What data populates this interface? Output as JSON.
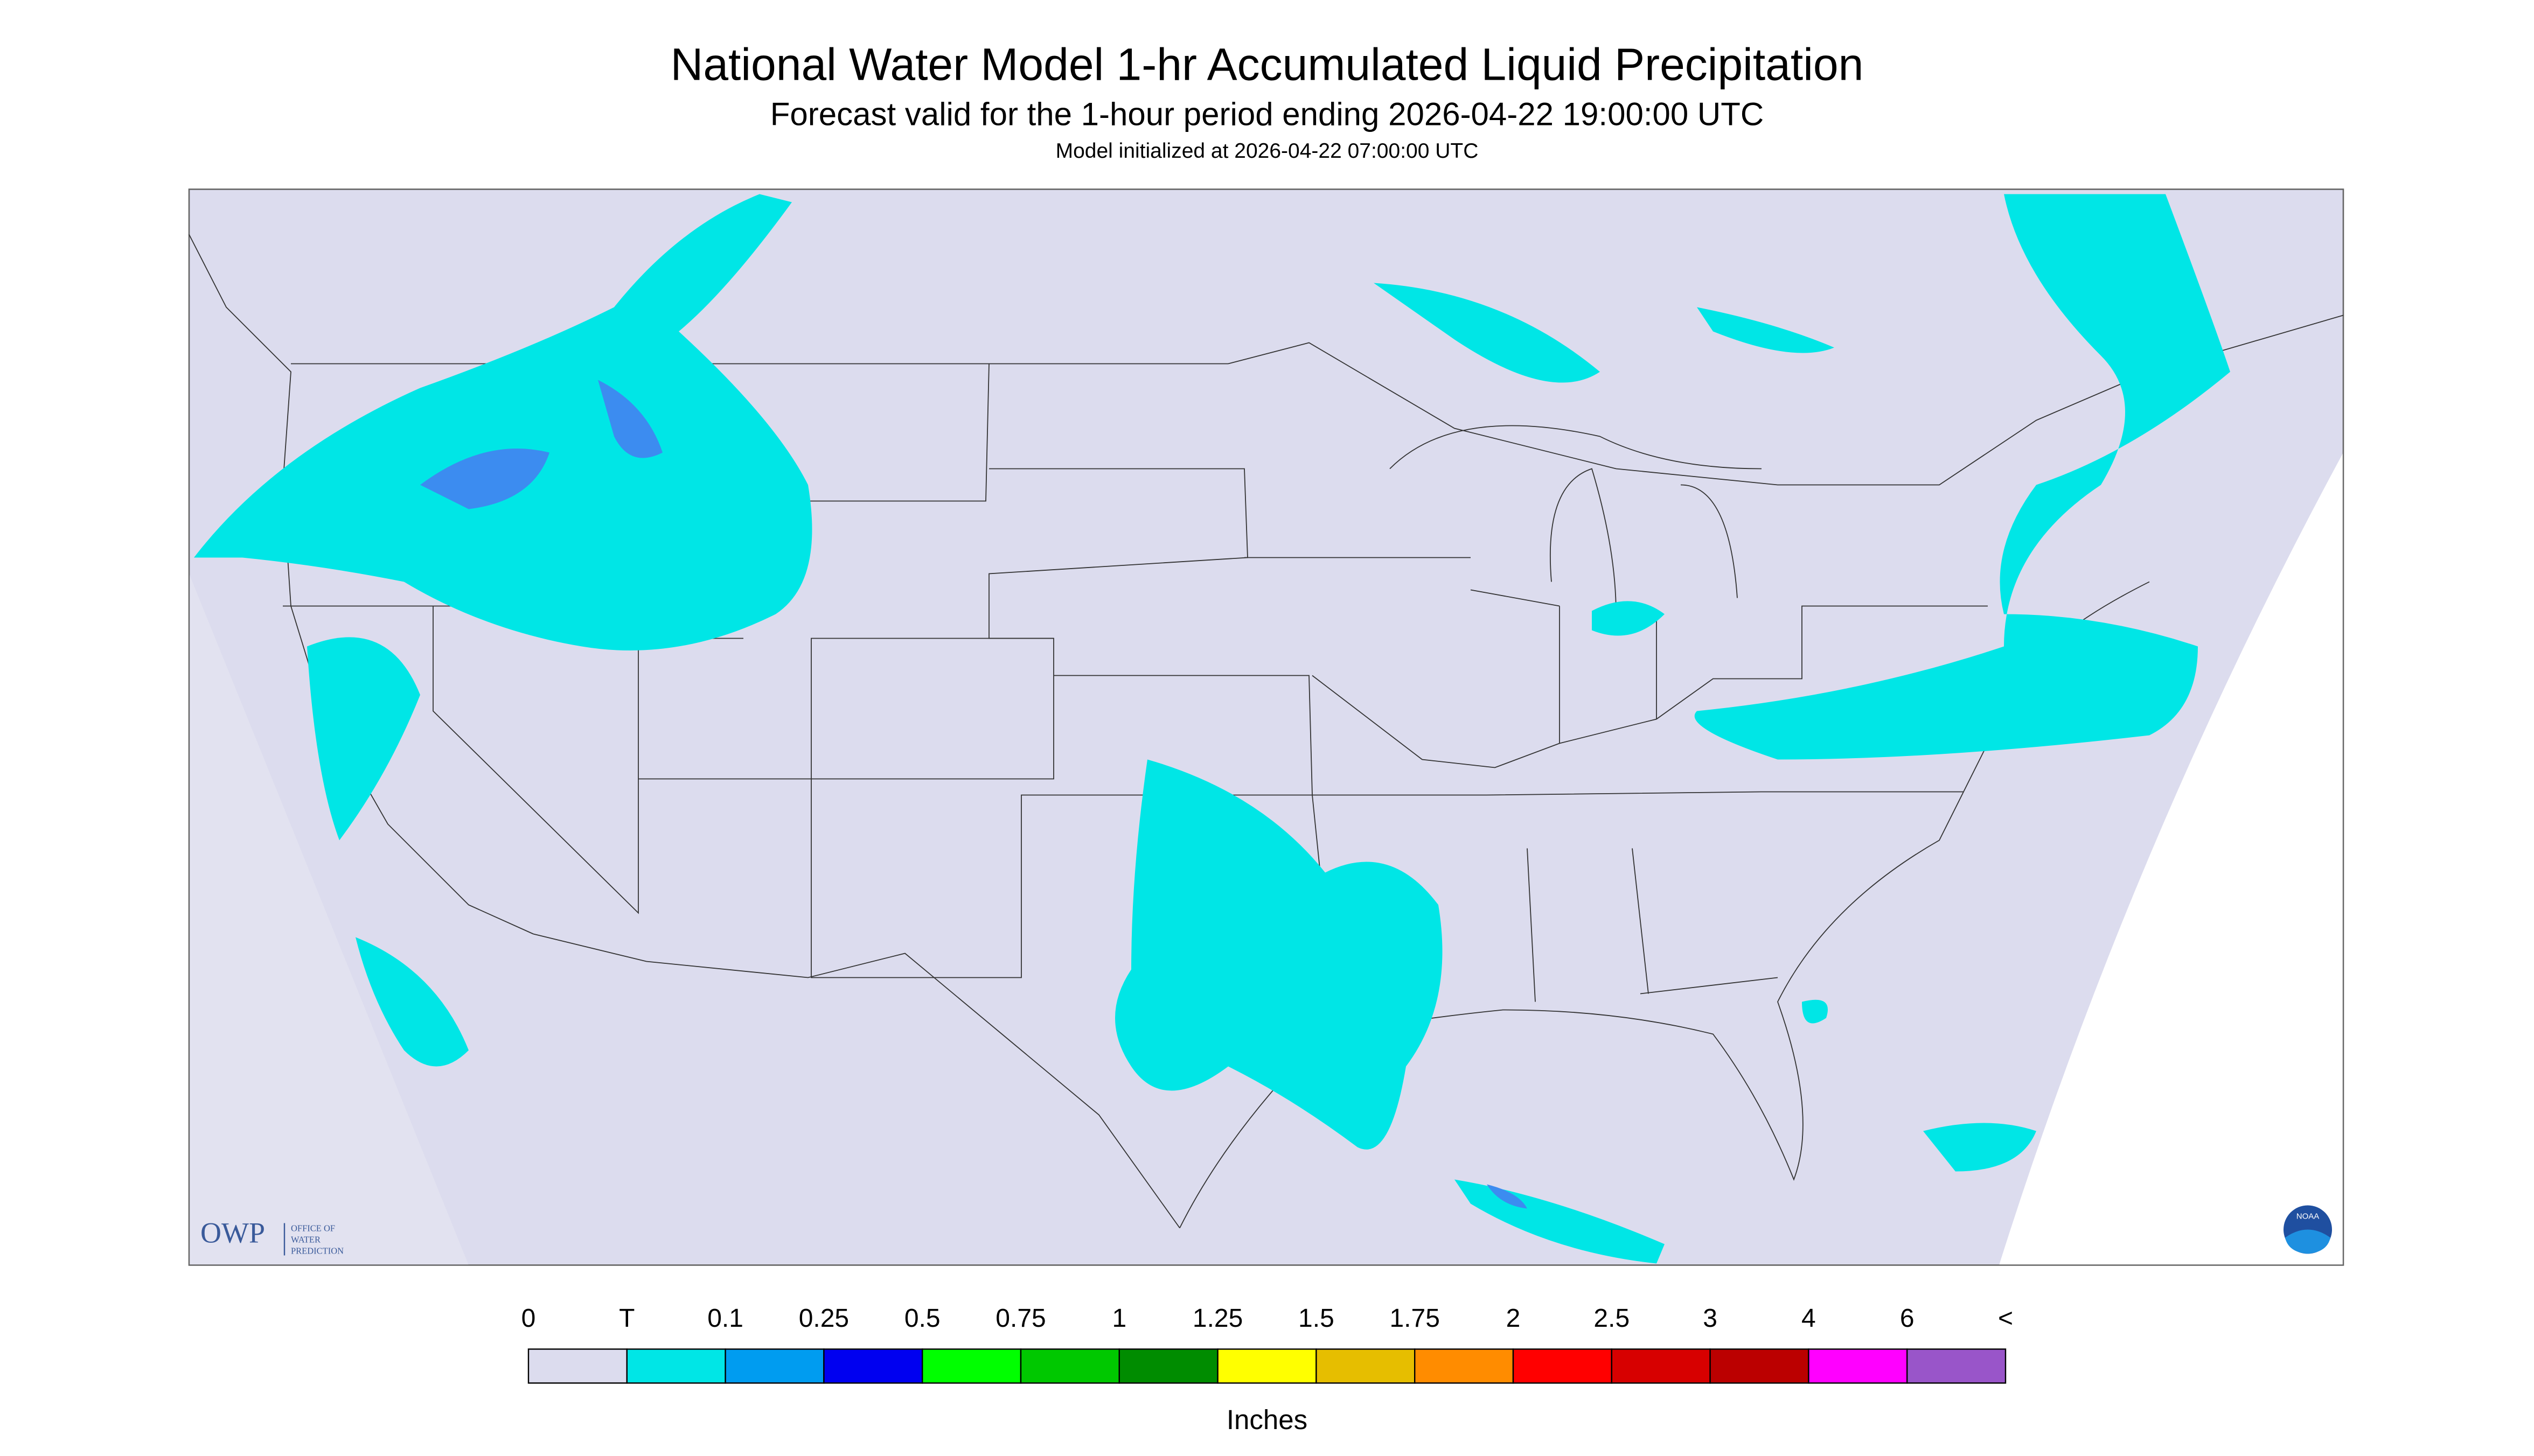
{
  "header": {
    "title": "National Water Model 1-hr Accumulated Liquid Precipitation",
    "subtitle": "Forecast valid for the 1-hour period ending 2026-04-22 19:00:00 UTC",
    "init": "Model initialized at 2026-04-22 07:00:00 UTC"
  },
  "logo": {
    "name": "OWP",
    "lines": [
      "OFFICE OF",
      "WATER",
      "PREDICTION"
    ],
    "badge": "NOAA"
  },
  "legend": {
    "labels": [
      "0",
      "T",
      "0.1",
      "0.25",
      "0.5",
      "0.75",
      "1",
      "1.25",
      "1.5",
      "1.75",
      "2",
      "2.5",
      "3",
      "4",
      "6",
      "<"
    ],
    "colors": [
      "#dcdcee",
      "#00e6e6",
      "#009cf0",
      "#0000f0",
      "#00ff00",
      "#00c800",
      "#008c00",
      "#ffff00",
      "#e6be00",
      "#ff8c00",
      "#ff0000",
      "#d70000",
      "#bb0000",
      "#ff00ff",
      "#9955c9"
    ],
    "unit": "Inches"
  }
}
